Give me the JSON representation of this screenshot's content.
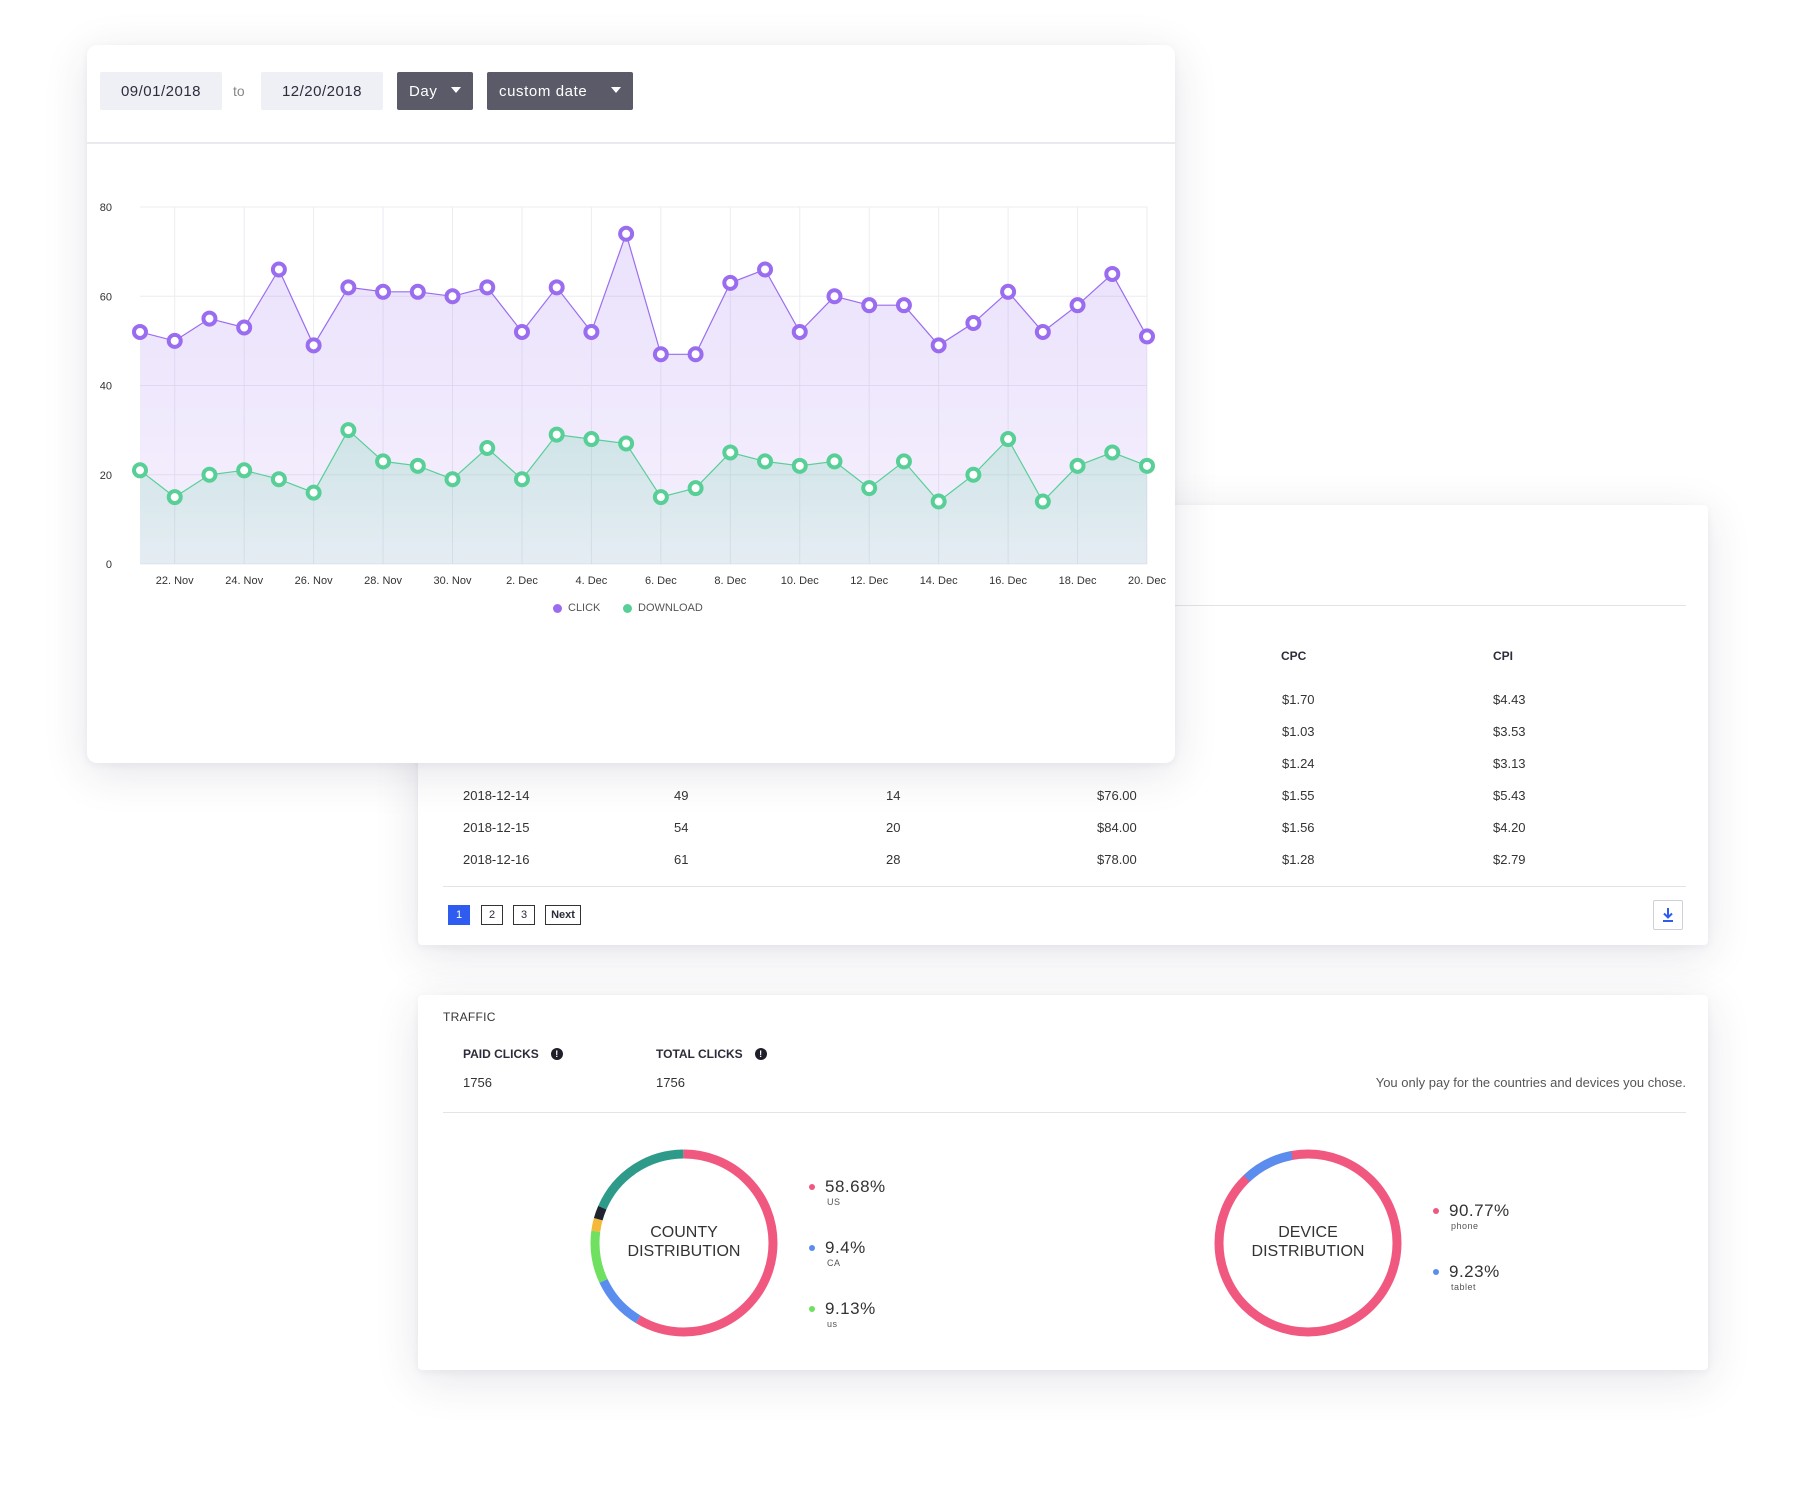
{
  "date_range": {
    "from": "09/01/2018",
    "to_label": "to",
    "to": "12/20/2018",
    "granularity": "Day",
    "preset": "custom date"
  },
  "chart_data": {
    "type": "area",
    "x_tick_labels": [
      "22. Nov",
      "24. Nov",
      "26. Nov",
      "28. Nov",
      "30. Nov",
      "2. Dec",
      "4. Dec",
      "6. Dec",
      "8. Dec",
      "10. Dec",
      "12. Dec",
      "14. Dec",
      "16. Dec",
      "18. Dec",
      "20. Dec"
    ],
    "ylim": [
      0,
      80
    ],
    "y_ticks": [
      0,
      20,
      40,
      60,
      80
    ],
    "grid": true,
    "legend_position": "bottom-center",
    "series": [
      {
        "name": "CLICK",
        "color": "#9a6cf0",
        "values": [
          52,
          50,
          55,
          53,
          66,
          49,
          62,
          61,
          61,
          60,
          62,
          52,
          62,
          52,
          74,
          47,
          47,
          63,
          66,
          52,
          60,
          58,
          58,
          49,
          54,
          61,
          52,
          58,
          65,
          51
        ]
      },
      {
        "name": "DOWNLOAD",
        "color": "#57cf97",
        "values": [
          21,
          15,
          20,
          21,
          19,
          16,
          30,
          23,
          22,
          19,
          26,
          19,
          29,
          28,
          27,
          15,
          17,
          25,
          23,
          22,
          23,
          17,
          23,
          14,
          20,
          28,
          14,
          22,
          25,
          22
        ]
      }
    ]
  },
  "table": {
    "headers": {
      "cpc": "CPC",
      "cpi": "CPI"
    },
    "partial_rows": [
      {
        "cpc": "$1.70",
        "cpi": "$4.43"
      },
      {
        "cpc": "$1.03",
        "cpi": "$3.53"
      },
      {
        "cpc": "$1.24",
        "cpi": "$3.13"
      }
    ],
    "rows": [
      {
        "date": "2018-12-14",
        "clicks": "49",
        "downloads": "14",
        "spend": "$76.00",
        "cpc": "$1.55",
        "cpi": "$5.43"
      },
      {
        "date": "2018-12-15",
        "clicks": "54",
        "downloads": "20",
        "spend": "$84.00",
        "cpc": "$1.56",
        "cpi": "$4.20"
      },
      {
        "date": "2018-12-16",
        "clicks": "61",
        "downloads": "28",
        "spend": "$78.00",
        "cpc": "$1.28",
        "cpi": "$2.79"
      }
    ],
    "pagination": {
      "p1": "1",
      "p2": "2",
      "p3": "3",
      "next": "Next"
    }
  },
  "traffic": {
    "title": "TRAFFIC",
    "paid_clicks_label": "PAID CLICKS",
    "paid_clicks_value": "1756",
    "total_clicks_label": "TOTAL CLICKS",
    "total_clicks_value": "1756",
    "note": "You only pay for the countries and devices you chose.",
    "info_glyph": "!",
    "country": {
      "label_line1": "COUNTY",
      "label_line2": "DISTRIBUTION",
      "items": [
        {
          "pct": "58.68%",
          "label": "US",
          "color": "#f0587f"
        },
        {
          "pct": "9.4%",
          "label": "CA",
          "color": "#5b8def"
        },
        {
          "pct": "9.13%",
          "label": "us",
          "color": "#6fe05f"
        }
      ]
    },
    "device": {
      "label_line1": "DEVICE",
      "label_line2": "DISTRIBUTION",
      "items": [
        {
          "pct": "90.77%",
          "label": "phone",
          "color": "#f0587f"
        },
        {
          "pct": "9.23%",
          "label": "tablet",
          "color": "#5b8def"
        }
      ]
    }
  },
  "icons": {
    "download": "download-icon",
    "info": "info-icon",
    "caret": "caret-down-icon"
  }
}
